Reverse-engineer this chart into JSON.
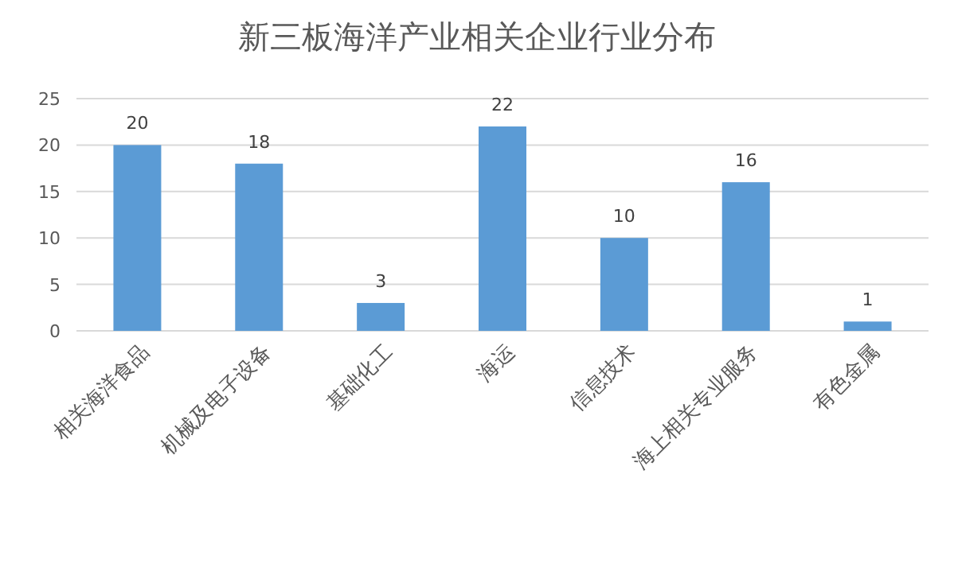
{
  "chart_data": {
    "type": "bar",
    "title": "新三板海洋产业相关企业行业分布",
    "categories": [
      "相关海洋食品",
      "机械及电子设备",
      "基础化工",
      "海运",
      "信息技术",
      "海上相关专业服务",
      "有色金属"
    ],
    "values": [
      20,
      18,
      3,
      22,
      10,
      16,
      1
    ],
    "color": "#5b9bd5",
    "ylim": [
      0,
      25
    ],
    "yticks": [
      0,
      5,
      10,
      15,
      20,
      25
    ],
    "grid": "y",
    "data_labels": true
  }
}
